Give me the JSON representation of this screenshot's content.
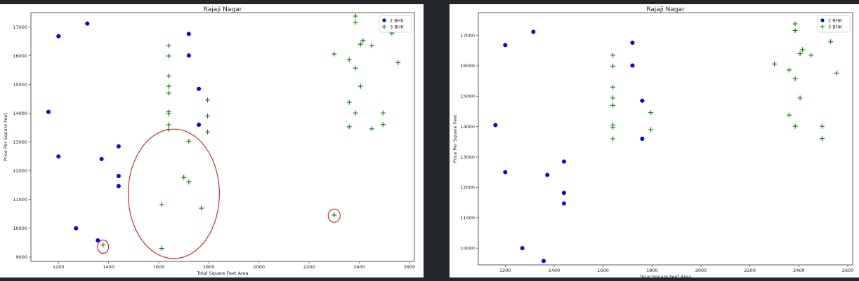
{
  "chart_data": [
    {
      "type": "scatter",
      "title": "Rajaji Nagar",
      "xlabel": "Total Square Feet Area",
      "ylabel": "Price Per Square Feet",
      "xlim": [
        1090,
        2620
      ],
      "ylim": [
        8850,
        17500
      ],
      "xticks": [
        1200,
        1400,
        1600,
        1800,
        2000,
        2200,
        2400,
        2600
      ],
      "yticks": [
        9000,
        10000,
        11000,
        12000,
        13000,
        14000,
        15000,
        16000,
        17000
      ],
      "legend": "top-right",
      "series": [
        {
          "name": "2 BHK",
          "color": "#0000ff",
          "marker": "circle",
          "points": [
            [
              1160,
              14050
            ],
            [
              1200,
              16680
            ],
            [
              1200,
              12500
            ],
            [
              1270,
              10000
            ],
            [
              1315,
              17120
            ],
            [
              1357,
              9580
            ],
            [
              1372,
              12410
            ],
            [
              1440,
              12850
            ],
            [
              1440,
              11820
            ],
            [
              1440,
              11470
            ],
            [
              1720,
              16760
            ],
            [
              1720,
              16010
            ],
            [
              1760,
              14850
            ],
            [
              1760,
              13600
            ]
          ]
        },
        {
          "name": "3 BHK",
          "color": "#008000",
          "marker": "plus",
          "points": [
            [
              1378,
              9420
            ],
            [
              1612,
              10830
            ],
            [
              1612,
              9300
            ],
            [
              1640,
              16350
            ],
            [
              1640,
              15990
            ],
            [
              1640,
              15300
            ],
            [
              1640,
              14940
            ],
            [
              1640,
              14700
            ],
            [
              1640,
              14050
            ],
            [
              1640,
              13980
            ],
            [
              1640,
              13600
            ],
            [
              1640,
              13440
            ],
            [
              1700,
              11770
            ],
            [
              1720,
              13030
            ],
            [
              1720,
              11610
            ],
            [
              1770,
              10700
            ],
            [
              1795,
              14460
            ],
            [
              1795,
              13900
            ],
            [
              1795,
              13350
            ],
            [
              2300,
              16060
            ],
            [
              2300,
              10460
            ],
            [
              2360,
              15860
            ],
            [
              2360,
              14380
            ],
            [
              2360,
              13530
            ],
            [
              2385,
              17380
            ],
            [
              2385,
              17160
            ],
            [
              2385,
              15570
            ],
            [
              2385,
              14010
            ],
            [
              2405,
              16400
            ],
            [
              2405,
              14940
            ],
            [
              2415,
              16530
            ],
            [
              2450,
              16350
            ],
            [
              2450,
              13460
            ],
            [
              2495,
              14010
            ],
            [
              2495,
              13610
            ],
            [
              2530,
              16790
            ],
            [
              2555,
              15760
            ]
          ]
        }
      ],
      "annotations": [
        {
          "shape": "ellipse",
          "color": "#e00000",
          "cx": 1378,
          "cy": 9360,
          "rx": 22,
          "ry": 230
        },
        {
          "shape": "ellipse",
          "color": "#e00000",
          "cx": 1660,
          "cy": 11200,
          "rx": 182,
          "ry": 2250
        },
        {
          "shape": "ellipse",
          "color": "#e00000",
          "cx": 2300,
          "cy": 10440,
          "rx": 24,
          "ry": 230
        }
      ]
    },
    {
      "type": "scatter",
      "title": "Rajaji Nagar",
      "xlabel": "Total Square Feet Area",
      "ylabel": "Price Per Square Feet",
      "xlim": [
        1090,
        2620
      ],
      "ylim": [
        9450,
        17750
      ],
      "xticks": [
        1200,
        1400,
        1600,
        1800,
        2000,
        2200,
        2400,
        2600
      ],
      "yticks": [
        10000,
        11000,
        12000,
        13000,
        14000,
        15000,
        16000,
        17000
      ],
      "legend": "top-right",
      "series": [
        {
          "name": "2 BHK",
          "color": "#0000ff",
          "marker": "circle",
          "points": [
            [
              1160,
              14050
            ],
            [
              1200,
              16680
            ],
            [
              1200,
              12500
            ],
            [
              1270,
              10000
            ],
            [
              1315,
              17120
            ],
            [
              1357,
              9580
            ],
            [
              1372,
              12410
            ],
            [
              1440,
              12850
            ],
            [
              1440,
              11820
            ],
            [
              1440,
              11470
            ],
            [
              1720,
              16760
            ],
            [
              1720,
              16010
            ],
            [
              1760,
              14850
            ],
            [
              1760,
              13600
            ]
          ]
        },
        {
          "name": "3 BHK",
          "color": "#008000",
          "marker": "plus",
          "points": [
            [
              1640,
              16350
            ],
            [
              1640,
              15990
            ],
            [
              1640,
              15300
            ],
            [
              1640,
              14940
            ],
            [
              1640,
              14700
            ],
            [
              1640,
              14050
            ],
            [
              1640,
              13980
            ],
            [
              1640,
              13600
            ],
            [
              1795,
              14460
            ],
            [
              1795,
              13900
            ],
            [
              2300,
              16060
            ],
            [
              2360,
              15860
            ],
            [
              2360,
              14380
            ],
            [
              2385,
              17380
            ],
            [
              2385,
              17160
            ],
            [
              2385,
              15570
            ],
            [
              2385,
              14010
            ],
            [
              2405,
              16400
            ],
            [
              2405,
              14940
            ],
            [
              2415,
              16530
            ],
            [
              2450,
              16350
            ],
            [
              2495,
              14010
            ],
            [
              2495,
              13610
            ],
            [
              2530,
              16790
            ],
            [
              2555,
              15760
            ]
          ]
        }
      ]
    }
  ]
}
